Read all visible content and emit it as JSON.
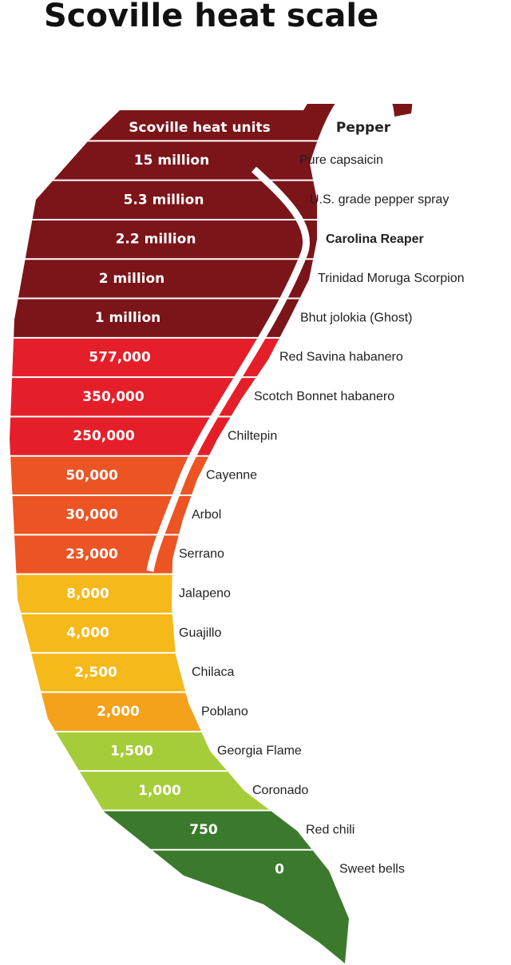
{
  "title": "Scoville heat scale",
  "header": {
    "heat": "Scoville heat units",
    "pepper": "Pepper"
  },
  "rows": [
    {
      "heat": "15 million",
      "pepper": "Pure capsaicin",
      "color": "#7b1519"
    },
    {
      "heat": "5.3 million",
      "pepper": "U.S. grade pepper spray",
      "color": "#7b1519"
    },
    {
      "heat": "2.2 million",
      "pepper": "Carolina Reaper",
      "color": "#7b1519",
      "bold": true
    },
    {
      "heat": "2 million",
      "pepper": "Trinidad Moruga Scorpion",
      "color": "#7b1519"
    },
    {
      "heat": "1 million",
      "pepper": "Bhut jolokia (Ghost)",
      "color": "#7b1519"
    },
    {
      "heat": "577,000",
      "pepper": "Red Savina habanero",
      "color": "#e51f2a"
    },
    {
      "heat": "350,000",
      "pepper": "Scotch Bonnet habanero",
      "color": "#e51f2a"
    },
    {
      "heat": "250,000",
      "pepper": "Chiltepin",
      "color": "#e51f2a"
    },
    {
      "heat": "50,000",
      "pepper": "Cayenne",
      "color": "#ec5424"
    },
    {
      "heat": "30,000",
      "pepper": "Arbol",
      "color": "#ec5424"
    },
    {
      "heat": "23,000",
      "pepper": "Serrano",
      "color": "#ec5424"
    },
    {
      "heat": "8,000",
      "pepper": "Jalapeno",
      "color": "#f6b91a"
    },
    {
      "heat": "4,000",
      "pepper": "Guajillo",
      "color": "#f6b91a"
    },
    {
      "heat": "2,500",
      "pepper": "Chilaca",
      "color": "#f6b91a"
    },
    {
      "heat": "2,000",
      "pepper": "Poblano",
      "color": "#f4a11c"
    },
    {
      "heat": "1,500",
      "pepper": "Georgia Flame",
      "color": "#a5cd3a"
    },
    {
      "heat": "1,000",
      "pepper": "Coronado",
      "color": "#a5cd3a"
    },
    {
      "heat": "750",
      "pepper": "Red chili",
      "color": "#3b7a2c"
    },
    {
      "heat": "0",
      "pepper": "Sweet bells",
      "color": "#3b7a2c"
    }
  ]
}
